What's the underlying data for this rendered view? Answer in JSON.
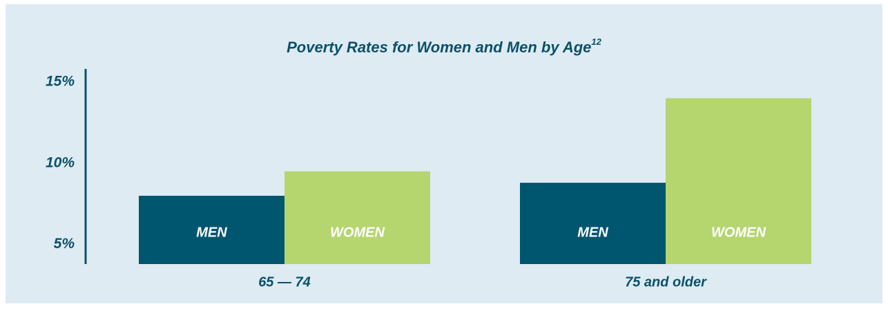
{
  "chart_data": {
    "type": "bar",
    "title": "Poverty Rates for Women and Men by Age",
    "title_superscript": "12",
    "categories": [
      "65 — 74",
      "75 and older"
    ],
    "series": [
      {
        "name": "MEN",
        "color": "#00566e",
        "values": [
          8.0,
          8.8
        ]
      },
      {
        "name": "WOMEN",
        "color": "#b5d56f",
        "values": [
          9.5,
          14.0
        ]
      }
    ],
    "ylim": [
      3.8,
      15.8
    ],
    "yticks": [
      {
        "value": 5,
        "label": "5%"
      },
      {
        "value": 10,
        "label": "10%"
      },
      {
        "value": 15,
        "label": "15%"
      }
    ],
    "grid": false
  }
}
